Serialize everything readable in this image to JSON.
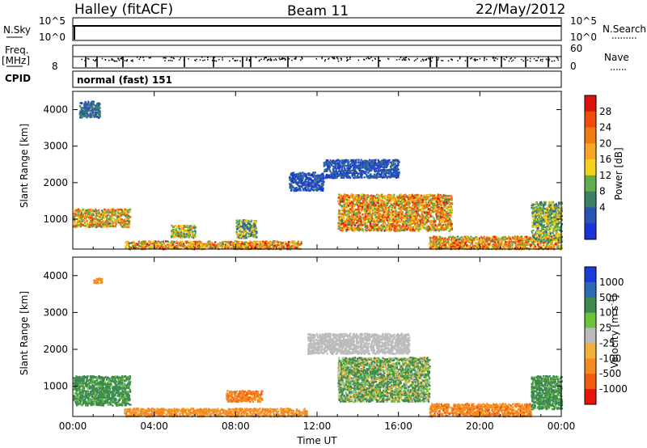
{
  "header": {
    "radar": "Halley (fitACF)",
    "beam": "Beam 11",
    "date": "22/May/2012"
  },
  "status_panels": {
    "nsky_label": "N.Sky",
    "nsky_ticks": [
      "10^5",
      "10^0"
    ],
    "nsearch_label": "N.Search",
    "nsearch_ticks": [
      "10^5",
      "10^0"
    ],
    "freq_label": "Freq.",
    "freq_unit": "[MHz]",
    "freq_ticks": [
      "8"
    ],
    "nave_label": "Nave",
    "nave_ticks": [
      "60",
      "0"
    ],
    "cpid_label": "CPID",
    "cpid_value": "normal (fast) 151"
  },
  "colors": {
    "power_scale": [
      "#1a33d9",
      "#2855b5",
      "#3c8066",
      "#5fae4a",
      "#f2d21c",
      "#f6a623",
      "#f27a12",
      "#f24b0c",
      "#e0120c"
    ],
    "velocity_scale": [
      "#1a3cd9",
      "#2b6bb3",
      "#3c8a4e",
      "#6dc23c",
      "#bcbcbc",
      "#f3b13a",
      "#f58a1e",
      "#f25a10",
      "#e8140c"
    ]
  },
  "chart_data": [
    {
      "type": "heatmap",
      "name": "power",
      "xlabel": "",
      "ylabel": "Slant Range [km]",
      "x_ticks": [
        "00:00",
        "04:00",
        "08:00",
        "12:00",
        "16:00",
        "20:00",
        "00:00"
      ],
      "x_range_hours": [
        0,
        24
      ],
      "y_ticks": [
        "1000",
        "2000",
        "3000",
        "4000"
      ],
      "y_range_km": [
        180,
        4500
      ],
      "colorbar_label": "Power [dB]",
      "colorbar_ticks": [
        "28",
        "24",
        "20",
        "16",
        "12",
        "8",
        "4"
      ],
      "color_range": [
        0,
        32
      ],
      "regions": [
        {
          "t0": 0.0,
          "t1": 2.8,
          "r0": 800,
          "r1": 1300,
          "vmin": 8,
          "vmax": 28
        },
        {
          "t0": 0.3,
          "t1": 1.3,
          "r0": 3800,
          "r1": 4250,
          "vmin": 4,
          "vmax": 10
        },
        {
          "t0": 2.5,
          "t1": 11.2,
          "r0": 200,
          "r1": 420,
          "vmin": 10,
          "vmax": 30
        },
        {
          "t0": 4.8,
          "t1": 6.0,
          "r0": 500,
          "r1": 850,
          "vmin": 8,
          "vmax": 22
        },
        {
          "t0": 8.0,
          "t1": 9.0,
          "r0": 500,
          "r1": 1000,
          "vmin": 4,
          "vmax": 20
        },
        {
          "t0": 10.6,
          "t1": 12.3,
          "r0": 1800,
          "r1": 2300,
          "vmin": 2,
          "vmax": 8
        },
        {
          "t0": 12.3,
          "t1": 16.0,
          "r0": 2150,
          "r1": 2650,
          "vmin": 2,
          "vmax": 8
        },
        {
          "t0": 13.0,
          "t1": 18.6,
          "r0": 700,
          "r1": 1700,
          "vmin": 10,
          "vmax": 30
        },
        {
          "t0": 17.5,
          "t1": 24.0,
          "r0": 200,
          "r1": 550,
          "vmin": 10,
          "vmax": 30
        },
        {
          "t0": 22.5,
          "t1": 24.0,
          "r0": 400,
          "r1": 1500,
          "vmin": 6,
          "vmax": 20
        }
      ]
    },
    {
      "type": "heatmap",
      "name": "velocity",
      "xlabel": "Time UT",
      "ylabel": "Slant Range [km]",
      "x_ticks": [
        "00:00",
        "04:00",
        "08:00",
        "12:00",
        "16:00",
        "20:00",
        "00:00"
      ],
      "x_range_hours": [
        0,
        24
      ],
      "y_ticks": [
        "1000",
        "2000",
        "3000",
        "4000"
      ],
      "y_range_km": [
        180,
        4500
      ],
      "colorbar_label": "Velocity [m s^-1]",
      "colorbar_ticks": [
        "1000",
        "500",
        "100",
        "25",
        "-25",
        "-100",
        "-500",
        "-1000"
      ],
      "regions": [
        {
          "t0": 0.0,
          "t1": 2.8,
          "r0": 500,
          "r1": 1300,
          "vmin": 50,
          "vmax": 400
        },
        {
          "t0": 1.0,
          "t1": 1.4,
          "r0": 3800,
          "r1": 3950,
          "vmin": -300,
          "vmax": -100
        },
        {
          "t0": 2.5,
          "t1": 11.5,
          "r0": 200,
          "r1": 420,
          "vmin": -400,
          "vmax": -50
        },
        {
          "t0": 7.5,
          "t1": 9.3,
          "r0": 600,
          "r1": 900,
          "vmin": -600,
          "vmax": -200
        },
        {
          "t0": 11.5,
          "t1": 16.5,
          "r0": 1900,
          "r1": 2450,
          "vmin": -20,
          "vmax": 20
        },
        {
          "t0": 13.0,
          "t1": 17.5,
          "r0": 600,
          "r1": 1800,
          "vmin": -100,
          "vmax": 300
        },
        {
          "t0": 17.5,
          "t1": 22.5,
          "r0": 200,
          "r1": 550,
          "vmin": -600,
          "vmax": -50
        },
        {
          "t0": 22.5,
          "t1": 24.0,
          "r0": 400,
          "r1": 1300,
          "vmin": 50,
          "vmax": 400
        }
      ]
    }
  ]
}
